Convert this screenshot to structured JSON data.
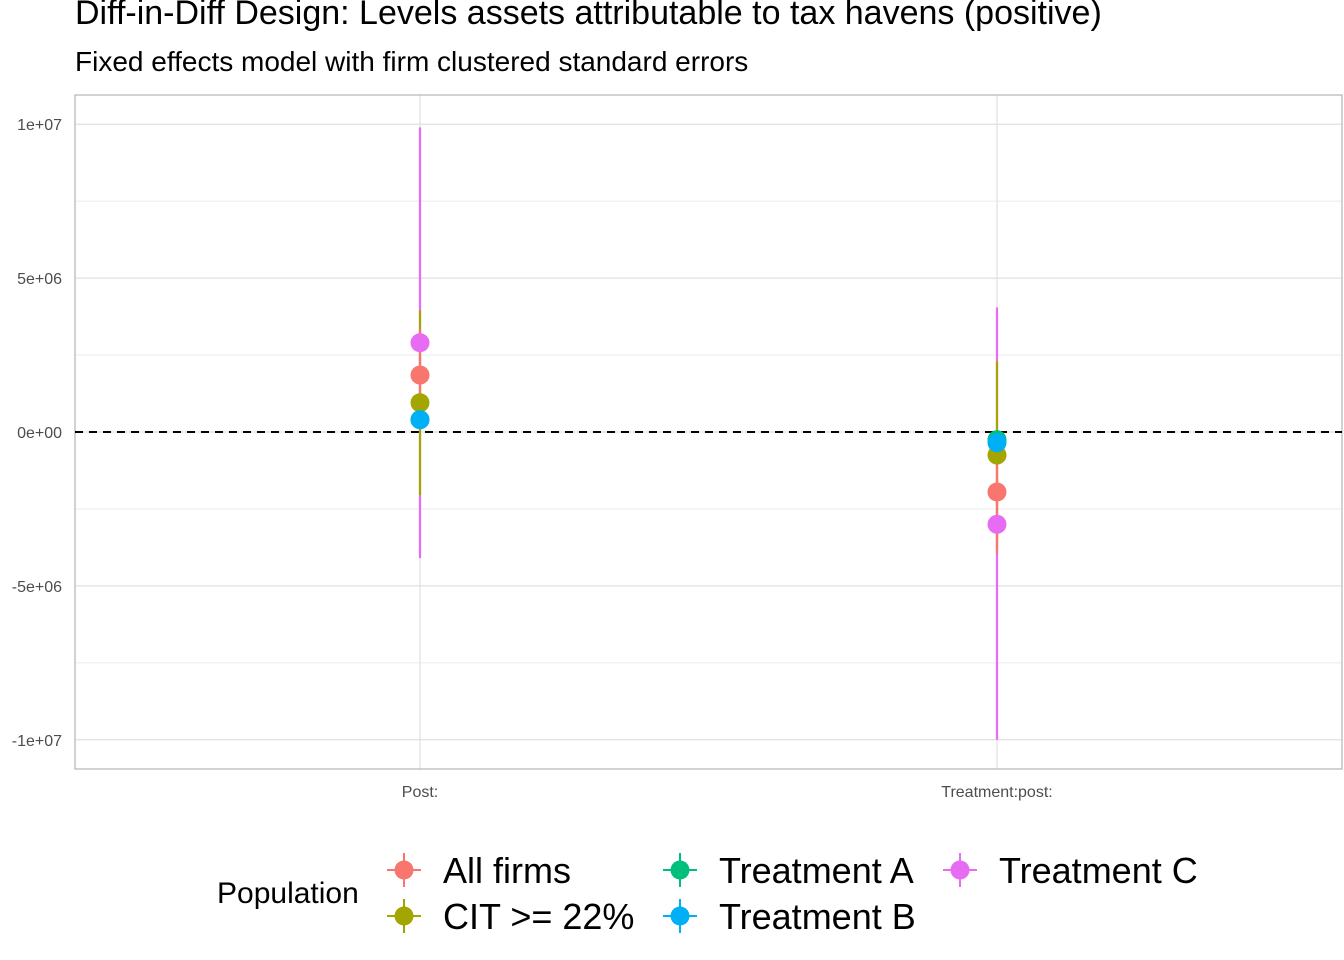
{
  "title": "Diff-in-Diff Design: Levels assets attributable to tax havens (positive)",
  "subtitle": "Fixed effects model with firm clustered standard errors",
  "chart_data": {
    "type": "scatter",
    "title": "Diff-in-Diff Design: Levels assets attributable to tax havens (positive)",
    "subtitle": "Fixed effects model with firm clustered standard errors",
    "xlabel": "",
    "ylabel": "",
    "categories": [
      "Post:",
      "Treatment:post:"
    ],
    "y_ticks": [
      {
        "value": 10000000,
        "label": "1e+07"
      },
      {
        "value": 5000000,
        "label": "5e+06"
      },
      {
        "value": 0,
        "label": "0e+00"
      },
      {
        "value": -5000000,
        "label": "-5e+06"
      },
      {
        "value": -10000000,
        "label": "-1e+07"
      }
    ],
    "ylim": [
      -10950000,
      10950000
    ],
    "reference_line": {
      "y": 0,
      "style": "dashed"
    },
    "grid": true,
    "legend": {
      "title": "Population",
      "position": "bottom"
    },
    "series": [
      {
        "name": "All firms",
        "color": "#F8766D",
        "values": [
          1850000,
          -1950000
        ],
        "ci_low": [
          350000,
          -3950000
        ],
        "ci_high": [
          3350000,
          50000
        ]
      },
      {
        "name": "CIT >= 22%",
        "color": "#A3A500",
        "values": [
          950000,
          -750000
        ],
        "ci_low": [
          -2050000,
          -3800000
        ],
        "ci_high": [
          3950000,
          2300000
        ]
      },
      {
        "name": "Treatment A",
        "color": "#00BF7D",
        "values": [
          400000,
          -250000
        ],
        "ci_low": [
          200000,
          -500000
        ],
        "ci_high": [
          600000,
          0
        ]
      },
      {
        "name": "Treatment B",
        "color": "#00B0F6",
        "values": [
          400000,
          -350000
        ],
        "ci_low": [
          150000,
          -650000
        ],
        "ci_high": [
          650000,
          -50000
        ]
      },
      {
        "name": "Treatment C",
        "color": "#E76BF3",
        "values": [
          2900000,
          -3000000
        ],
        "ci_low": [
          -4100000,
          -10000000
        ],
        "ci_high": [
          9900000,
          4050000
        ]
      }
    ]
  }
}
